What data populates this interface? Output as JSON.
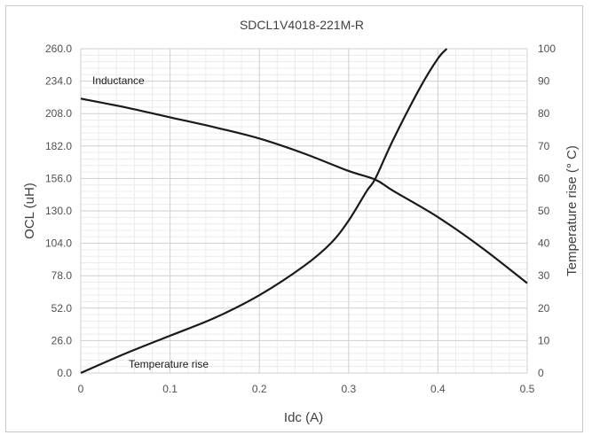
{
  "chart_data": {
    "type": "line",
    "title": "SDCL1V4018-221M-R",
    "xlabel": "Idc (A)",
    "ylabel": "OCL (uH)",
    "y2label": "Temperature rise (° C)",
    "xlim": [
      0,
      0.5
    ],
    "ylim": [
      0,
      260
    ],
    "y2lim": [
      0,
      100
    ],
    "grid": true,
    "x_ticks": [
      "0",
      "0.1",
      "0.2",
      "0.3",
      "0.4",
      "0.5"
    ],
    "y_ticks": [
      "0.0",
      "26.0",
      "52.0",
      "78.0",
      "104.0",
      "130.0",
      "156.0",
      "182.0",
      "208.0",
      "234.0",
      "260.0"
    ],
    "y2_ticks": [
      "0",
      "10",
      "20",
      "30",
      "40",
      "50",
      "60",
      "70",
      "80",
      "90",
      "100"
    ],
    "series": [
      {
        "name": "Inductance",
        "axis": "left",
        "color": "#1a1a1a",
        "x": [
          0,
          0.05,
          0.1,
          0.15,
          0.2,
          0.25,
          0.3,
          0.33,
          0.35,
          0.4,
          0.45,
          0.5
        ],
        "y": [
          220,
          213,
          205,
          197,
          188,
          176,
          162,
          155,
          146,
          125,
          100,
          72
        ]
      },
      {
        "name": "Temperature rise",
        "axis": "right",
        "color": "#1a1a1a",
        "x": [
          0,
          0.05,
          0.1,
          0.15,
          0.2,
          0.25,
          0.28,
          0.3,
          0.32,
          0.33,
          0.35,
          0.38,
          0.4,
          0.41
        ],
        "y": [
          0,
          6,
          11.5,
          17,
          24,
          33,
          40,
          47,
          56,
          60,
          72,
          88,
          97,
          100
        ]
      }
    ],
    "annotations": [
      {
        "text": "Inductance"
      },
      {
        "text": "Temperature rise"
      }
    ]
  }
}
